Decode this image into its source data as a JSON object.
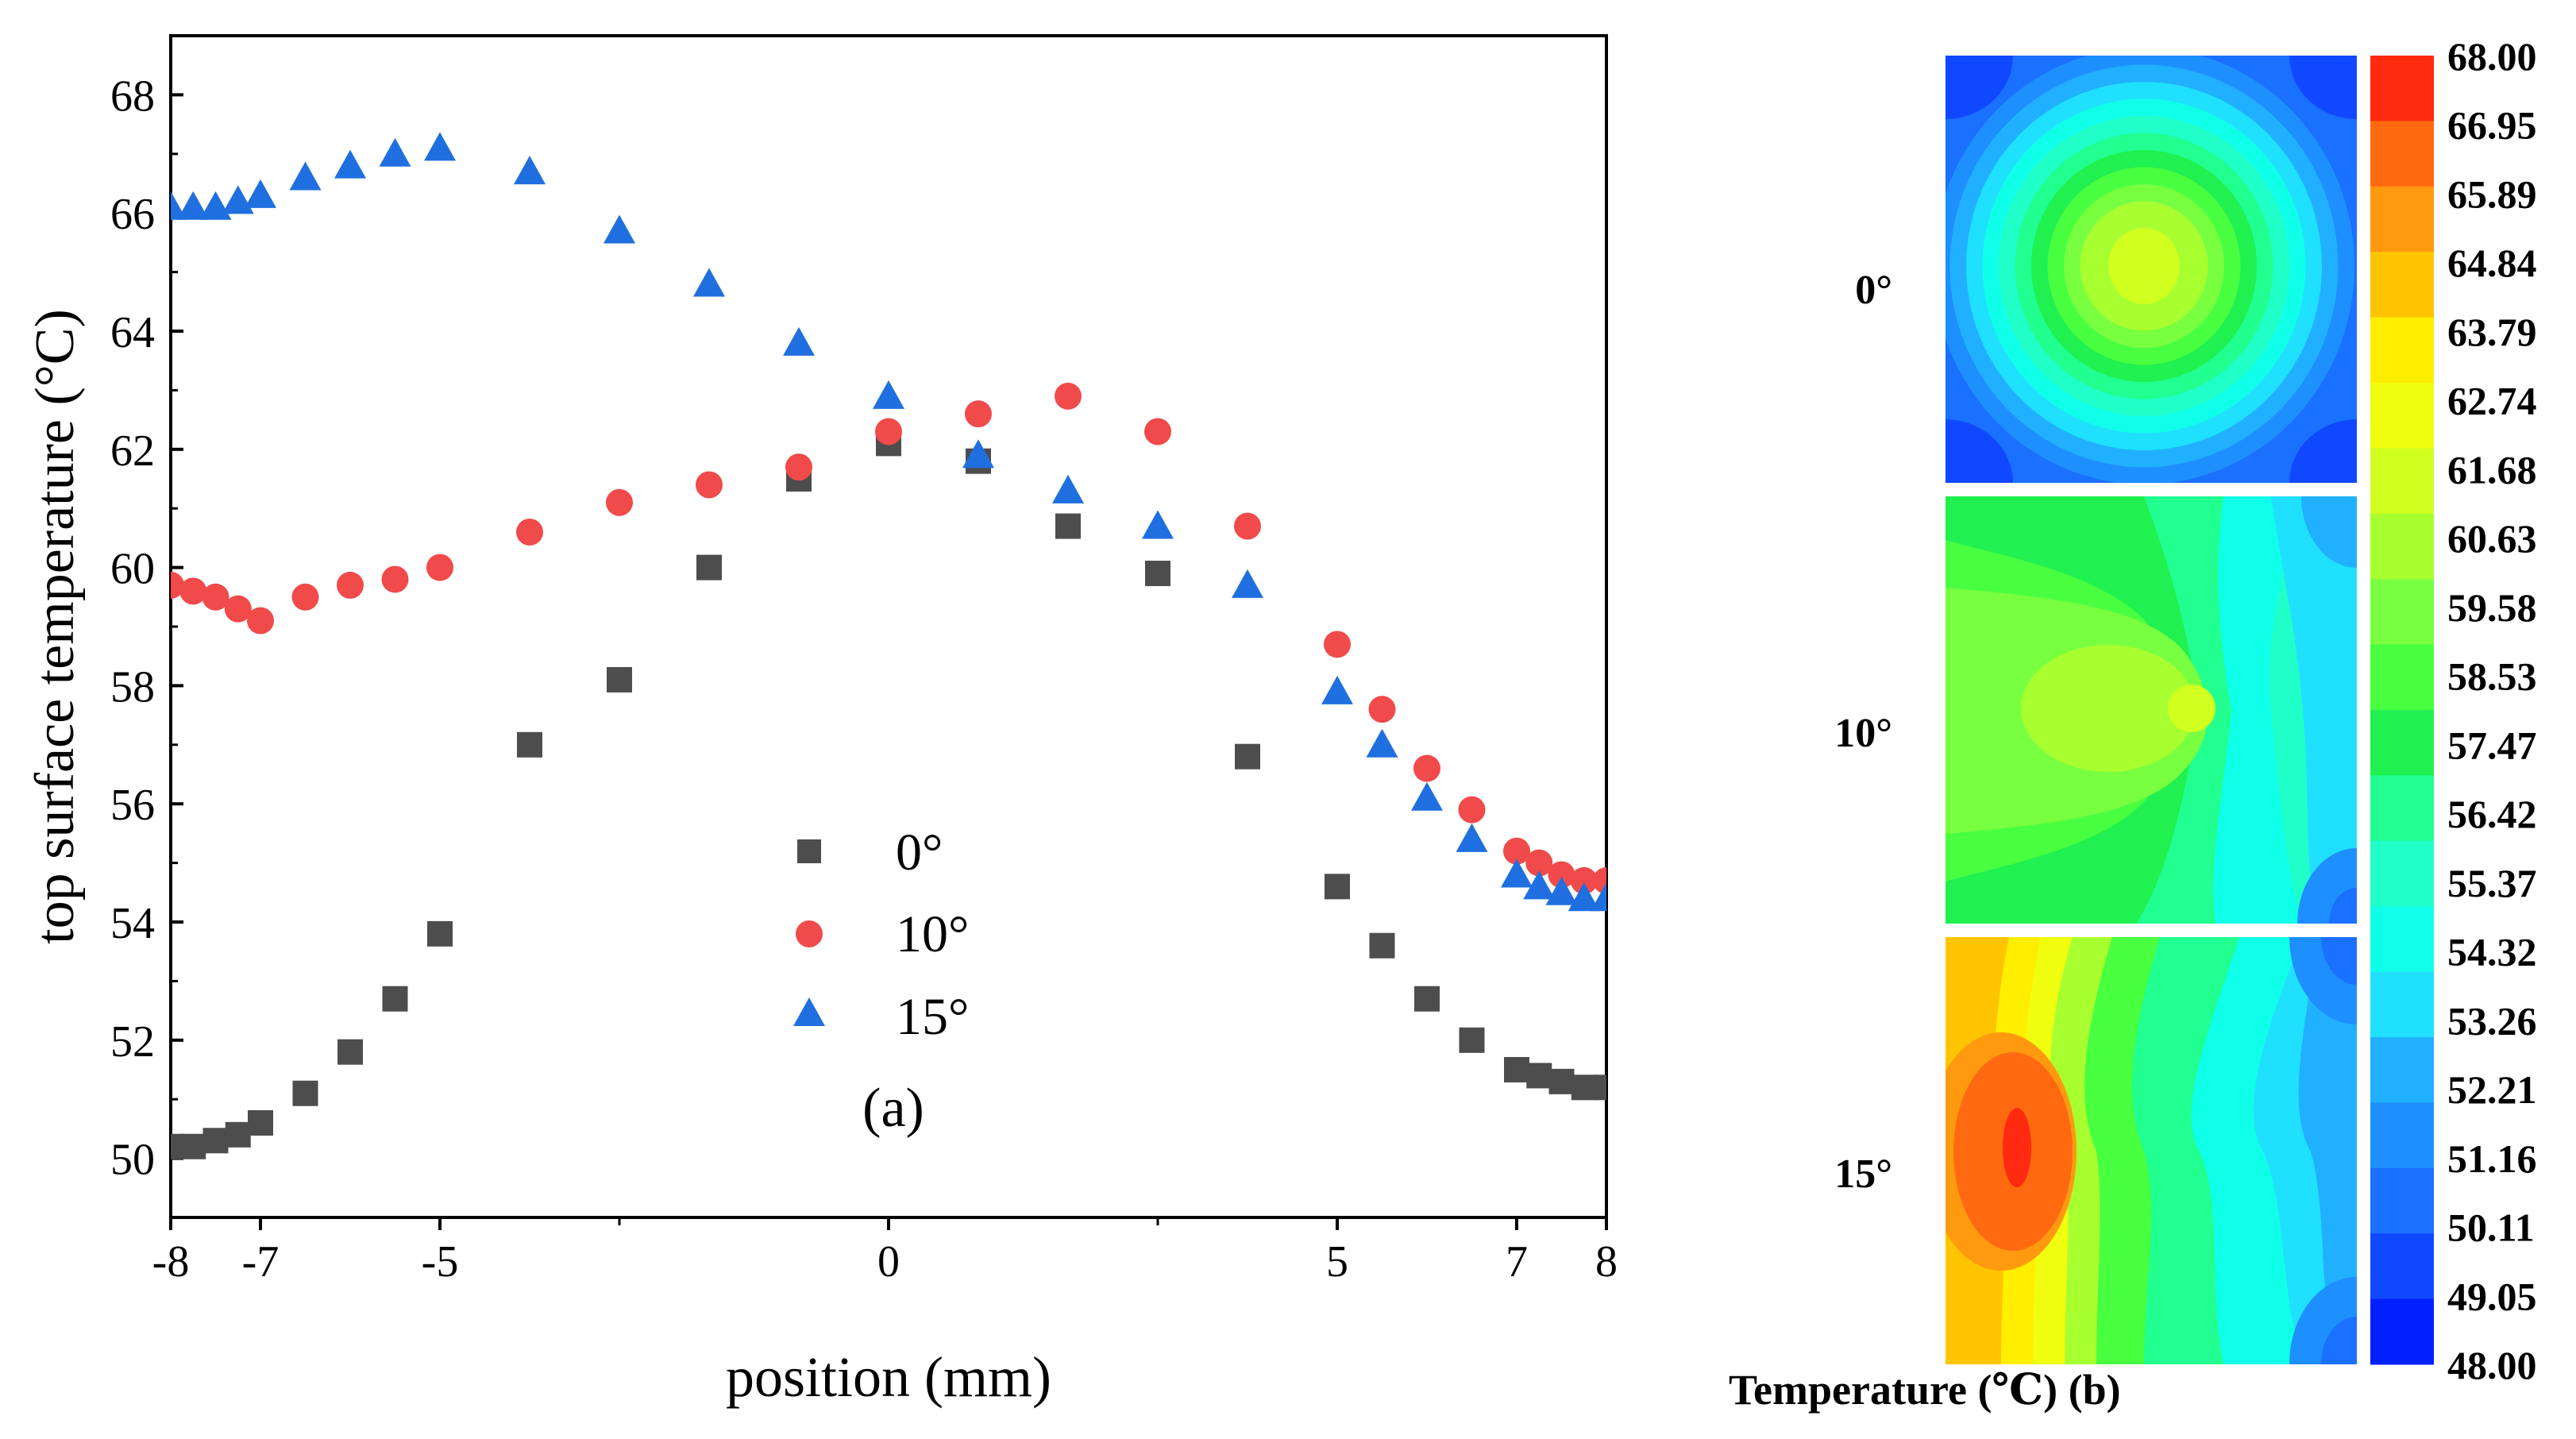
{
  "chart_data": [
    {
      "type": "scatter",
      "panel_label": "(a)",
      "xlabel": "position (mm)",
      "ylabel": "top surface temperature (°C)",
      "xlim": [
        -8,
        8
      ],
      "ylim": [
        49,
        69
      ],
      "x_ticks": [
        -8,
        -7,
        -5,
        0,
        5,
        7,
        8
      ],
      "x_tick_labels": [
        "-8",
        "-7",
        "-5",
        "0",
        "5",
        "7",
        "8"
      ],
      "x_minor_ticks": [
        -3,
        3
      ],
      "y_ticks": [
        50,
        52,
        54,
        56,
        58,
        60,
        62,
        64,
        66,
        68
      ],
      "y_tick_labels": [
        "50",
        "52",
        "54",
        "56",
        "58",
        "60",
        "62",
        "64",
        "66",
        "68"
      ],
      "legend_position": "center",
      "series": [
        {
          "name": "0°",
          "marker": "square",
          "color": "#4d4d4d",
          "points": [
            [
              -8,
              50.2
            ],
            [
              -7.75,
              50.2
            ],
            [
              -7.5,
              50.3
            ],
            [
              -7.25,
              50.4
            ],
            [
              -7,
              50.6
            ],
            [
              -6.5,
              51.1
            ],
            [
              -6,
              51.8
            ],
            [
              -5.5,
              52.7
            ],
            [
              -5,
              53.8
            ],
            [
              -4,
              57.0
            ],
            [
              -3,
              58.1
            ],
            [
              -2,
              60.0
            ],
            [
              -1,
              61.5
            ],
            [
              0,
              62.1
            ],
            [
              1,
              61.8
            ],
            [
              2,
              60.7
            ],
            [
              3,
              59.9
            ],
            [
              4,
              56.8
            ],
            [
              5,
              54.6
            ],
            [
              5.5,
              53.6
            ],
            [
              6,
              52.7
            ],
            [
              6.5,
              52.0
            ],
            [
              7,
              51.5
            ],
            [
              7.25,
              51.4
            ],
            [
              7.5,
              51.3
            ],
            [
              7.75,
              51.2
            ],
            [
              8,
              51.2
            ]
          ]
        },
        {
          "name": "10°",
          "marker": "circle",
          "color": "#f04a4a",
          "points": [
            [
              -8,
              59.7
            ],
            [
              -7.75,
              59.6
            ],
            [
              -7.5,
              59.5
            ],
            [
              -7.25,
              59.3
            ],
            [
              -7,
              59.1
            ],
            [
              -6.5,
              59.5
            ],
            [
              -6,
              59.7
            ],
            [
              -5.5,
              59.8
            ],
            [
              -5,
              60.0
            ],
            [
              -4,
              60.6
            ],
            [
              -3,
              61.1
            ],
            [
              -2,
              61.4
            ],
            [
              -1,
              61.7
            ],
            [
              0,
              62.3
            ],
            [
              1,
              62.6
            ],
            [
              2,
              62.9
            ],
            [
              3,
              62.3
            ],
            [
              4,
              60.7
            ],
            [
              5,
              58.7
            ],
            [
              5.5,
              57.6
            ],
            [
              6,
              56.6
            ],
            [
              6.5,
              55.9
            ],
            [
              7,
              55.2
            ],
            [
              7.25,
              55.0
            ],
            [
              7.5,
              54.8
            ],
            [
              7.75,
              54.7
            ],
            [
              8,
              54.7
            ]
          ]
        },
        {
          "name": "15°",
          "marker": "triangle",
          "color": "#1f6fe0",
          "points": [
            [
              -8,
              66.1
            ],
            [
              -7.75,
              66.1
            ],
            [
              -7.5,
              66.1
            ],
            [
              -7.25,
              66.2
            ],
            [
              -7,
              66.3
            ],
            [
              -6.5,
              66.6
            ],
            [
              -6,
              66.8
            ],
            [
              -5.5,
              67.0
            ],
            [
              -5,
              67.1
            ],
            [
              -4,
              66.7
            ],
            [
              -3,
              65.7
            ],
            [
              -2,
              64.8
            ],
            [
              -1,
              63.8
            ],
            [
              0,
              62.9
            ],
            [
              1,
              61.9
            ],
            [
              2,
              61.3
            ],
            [
              3,
              60.7
            ],
            [
              4,
              59.7
            ],
            [
              5,
              57.9
            ],
            [
              5.5,
              57.0
            ],
            [
              6,
              56.1
            ],
            [
              6.5,
              55.4
            ],
            [
              7,
              54.8
            ],
            [
              7.25,
              54.6
            ],
            [
              7.5,
              54.5
            ],
            [
              7.75,
              54.4
            ],
            [
              8,
              54.4
            ]
          ]
        }
      ]
    },
    {
      "type": "heatmap",
      "panel_label": "Temperature (℃) (b)",
      "rows": [
        "0°",
        "10°",
        "15°"
      ],
      "colorbar_range": [
        48.0,
        68.0
      ],
      "colorbar_labels": [
        "68.00",
        "66.95",
        "65.89",
        "64.84",
        "63.79",
        "62.74",
        "61.68",
        "60.63",
        "59.58",
        "58.53",
        "57.47",
        "56.42",
        "55.37",
        "54.32",
        "53.26",
        "52.21",
        "51.16",
        "50.11",
        "49.05",
        "48.00"
      ],
      "colorbar_colors_top_to_bottom": [
        "#ff2a10",
        "#ff6a10",
        "#ff9a10",
        "#ffc400",
        "#ffee00",
        "#f0ff10",
        "#d0ff20",
        "#a8ff30",
        "#78ff40",
        "#48ff40",
        "#20f050",
        "#20ff90",
        "#20ffc8",
        "#10ffe8",
        "#20e0ff",
        "#20b0ff",
        "#1e8fff",
        "#1a70ff",
        "#1048ff",
        "#0020ff"
      ],
      "maps": [
        {
          "name": "0°",
          "background": "#1a70ff",
          "contours": [
            {
              "color": "#1e8fff"
            },
            {
              "color": "#20b0ff"
            },
            {
              "color": "#20e0ff"
            },
            {
              "color": "#10ffe8"
            },
            {
              "color": "#20ffc8"
            },
            {
              "color": "#20ff90"
            },
            {
              "color": "#20f050"
            },
            {
              "color": "#48ff40"
            },
            {
              "color": "#78ff40"
            },
            {
              "color": "#a8ff30"
            }
          ]
        },
        {
          "name": "10°",
          "background": "#20ffc8"
        },
        {
          "name": "15°",
          "background": "#20e0ff"
        }
      ]
    }
  ]
}
